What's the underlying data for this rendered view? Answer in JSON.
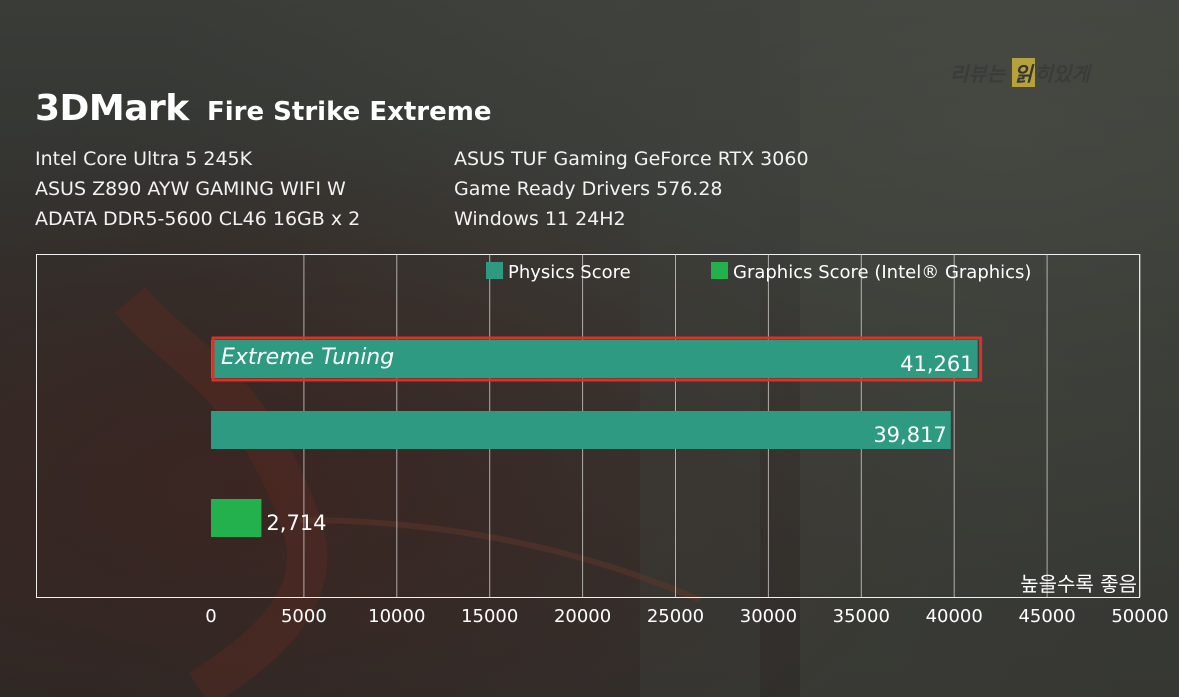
{
  "header": {
    "title": "3DMark",
    "subtitle": "Fire Strike Extreme",
    "watermark_pre": "리뷰는",
    "watermark_box": "읽",
    "watermark_post": "히있게"
  },
  "specs_left": [
    "Intel Core Ultra 5 245K",
    "ASUS Z890 AYW GAMING WIFI W",
    "ADATA DDR5-5600 CL46 16GB x 2"
  ],
  "specs_right": [
    "ASUS TUF Gaming GeForce RTX 3060",
    "Game Ready Drivers 576.28",
    "Windows 11 24H2"
  ],
  "note": "높을수록 좋음",
  "colors": {
    "physics": "#2e9a82",
    "graphics": "#22b14c",
    "highlight": "#d93228"
  },
  "chart_data": {
    "type": "bar",
    "orientation": "horizontal",
    "xlim": [
      0,
      50000
    ],
    "xticks": [
      "0",
      "5000",
      "10000",
      "15000",
      "20000",
      "25000",
      "30000",
      "35000",
      "40000",
      "45000",
      "50000"
    ],
    "grid": true,
    "legend_position": "top",
    "series": [
      {
        "name": "Physics Score",
        "color_key": "physics"
      },
      {
        "name": "Graphics Score (Intel® Graphics)",
        "color_key": "graphics"
      }
    ],
    "bars": [
      {
        "series": "Physics Score",
        "value": 41261,
        "value_label": "41,261",
        "category_label": "Extreme Tuning",
        "highlighted": true
      },
      {
        "series": "Physics Score",
        "value": 39817,
        "value_label": "39,817",
        "category_label": "",
        "highlighted": false
      },
      {
        "series": "Graphics Score (Intel® Graphics)",
        "value": 2714,
        "value_label": "2,714",
        "category_label": "",
        "highlighted": false
      }
    ]
  }
}
